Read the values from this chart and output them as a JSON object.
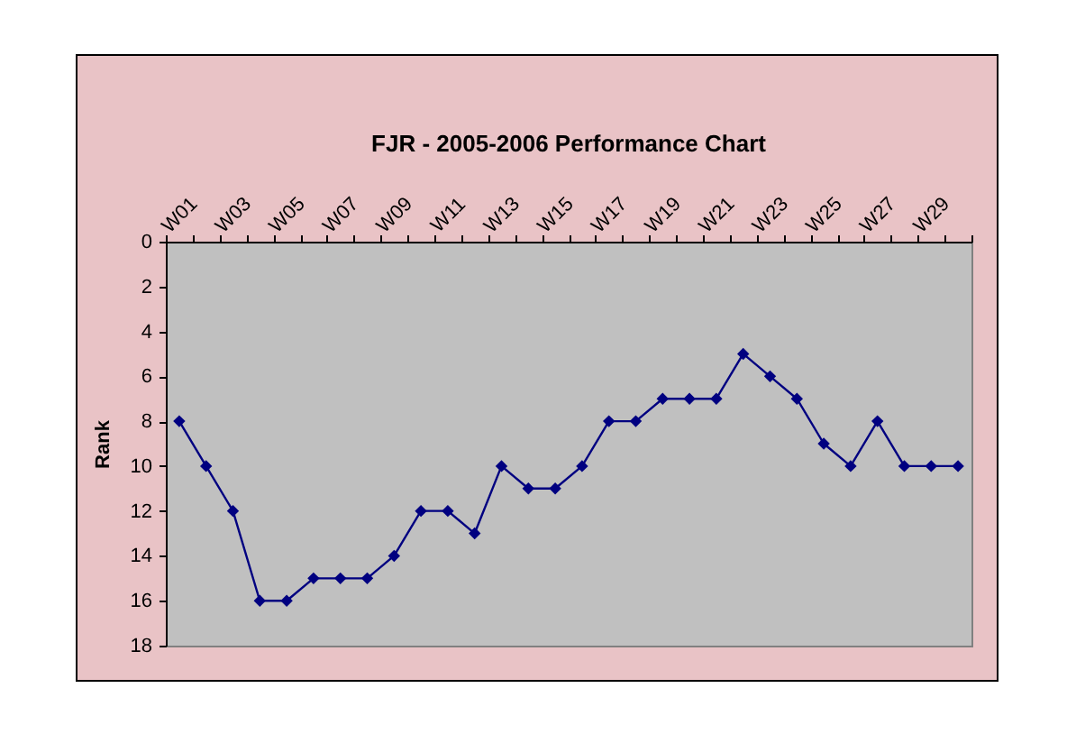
{
  "chart_data": {
    "type": "line",
    "title": "FJR - 2005-2006 Performance Chart",
    "ylabel": "Rank",
    "categories": [
      "W01",
      null,
      "W03",
      null,
      "W05",
      null,
      "W07",
      null,
      "W09",
      null,
      "W11",
      null,
      "W13",
      null,
      "W15",
      null,
      "W17",
      null,
      "W19",
      null,
      "W21",
      null,
      "W23",
      null,
      "W25",
      null,
      "W27",
      null,
      "W29",
      null
    ],
    "series": [
      {
        "color": "#000080",
        "values": [
          8,
          10,
          12,
          16,
          16,
          15,
          15,
          15,
          14,
          12,
          12,
          13,
          10,
          11,
          11,
          10,
          8,
          8,
          7,
          7,
          7,
          5,
          6,
          7,
          9,
          10,
          8,
          10,
          10,
          10
        ]
      }
    ],
    "ylim": [
      18,
      0
    ],
    "yticks": [
      0,
      2,
      4,
      6,
      8,
      10,
      12,
      14,
      16,
      18
    ],
    "grid": false,
    "marker": "diamond",
    "line_style": "solid"
  }
}
